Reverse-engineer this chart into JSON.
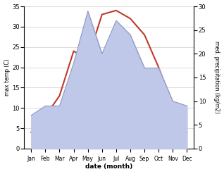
{
  "months": [
    "Jan",
    "Feb",
    "Mar",
    "Apr",
    "May",
    "Jun",
    "Jul",
    "Aug",
    "Sep",
    "Oct",
    "Nov",
    "Dec"
  ],
  "temperature": [
    4,
    8,
    13,
    24,
    22,
    33,
    34,
    32,
    28,
    20,
    11,
    4
  ],
  "precipitation": [
    7,
    9,
    9,
    18,
    29,
    20,
    27,
    24,
    17,
    17,
    10,
    9
  ],
  "temp_color": "#c0392b",
  "precip_fill_color": "#bfc8e8",
  "precip_edge_color": "#9099c0",
  "temp_ylim": [
    0,
    35
  ],
  "precip_ylim": [
    0,
    30
  ],
  "temp_yticks": [
    0,
    5,
    10,
    15,
    20,
    25,
    30,
    35
  ],
  "precip_yticks": [
    0,
    5,
    10,
    15,
    20,
    25,
    30
  ],
  "xlabel": "date (month)",
  "ylabel_left": "max temp (C)",
  "ylabel_right": "med. precipitation (kg/m2)",
  "bg_color": "#ffffff",
  "grid_color": "#cccccc",
  "figsize": [
    3.18,
    2.47
  ],
  "dpi": 100
}
